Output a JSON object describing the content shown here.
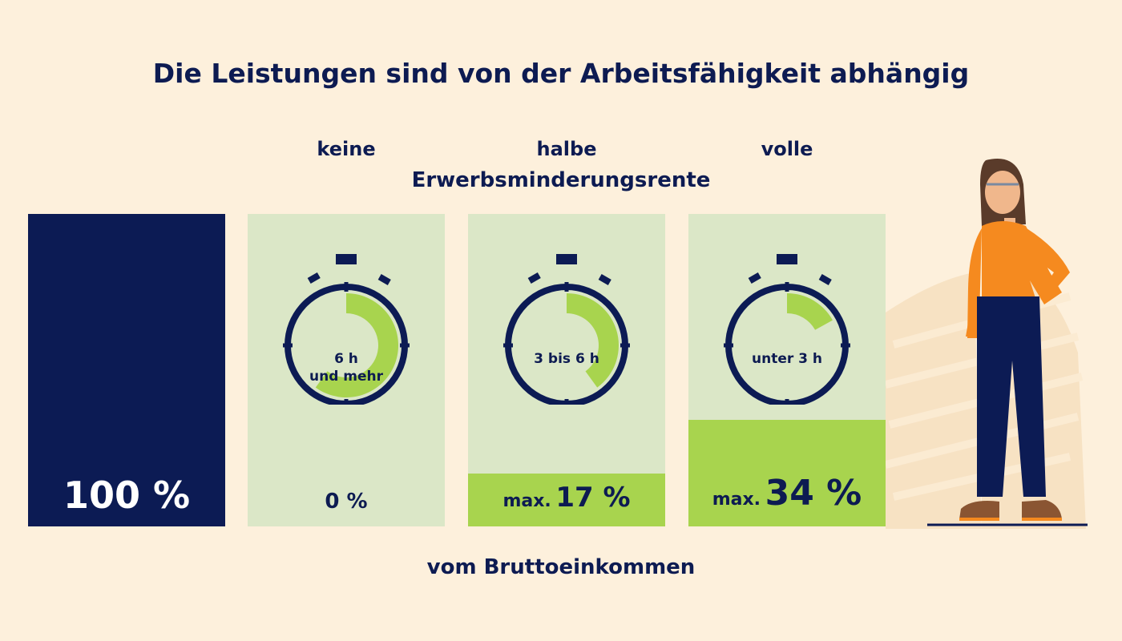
{
  "title": "Die Leistungen sind von der Arbeitsfähigkeit abhängig",
  "columns": [
    {
      "header": "keine",
      "hours_label_line1": "6 h",
      "hours_label_line2": "und mehr",
      "percent_prefix": "",
      "percent": "0 %",
      "clock_fill_fraction": 0.6,
      "bar_fill_fraction": 0
    },
    {
      "header": "halbe",
      "hours_label_line1": "3 bis 6 h",
      "hours_label_line2": "",
      "percent_prefix": "max.",
      "percent": "17 %",
      "clock_fill_fraction": 0.4,
      "bar_fill_fraction": 0.17
    },
    {
      "header": "volle",
      "hours_label_line1": "unter 3 h",
      "hours_label_line2": "",
      "percent_prefix": "max.",
      "percent": "34 %",
      "clock_fill_fraction": 0.17,
      "bar_fill_fraction": 0.34
    }
  ],
  "subtitle": "Erwerbsminderungsrente",
  "baseline": {
    "percent": "100 %"
  },
  "footer": "vom Bruttoeinkommen",
  "colors": {
    "background": "#fdf0dc",
    "navy": "#0c1b54",
    "light_green": "#dbe7c7",
    "green": "#a8d44e",
    "orange": "#f58a1f"
  },
  "icons": {
    "clock": "stopwatch-icon",
    "person": "woman-illustration"
  }
}
